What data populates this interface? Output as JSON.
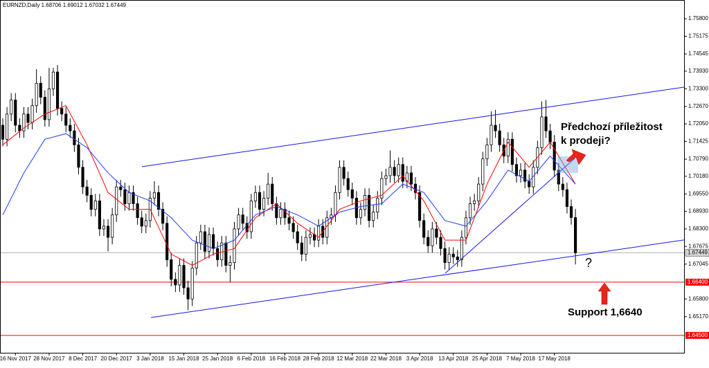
{
  "chart_data": {
    "type": "candlestick",
    "title": "EURNZD,Daily",
    "xlim": [
      -0.66,
      161.8
    ],
    "ylim": [
      1.6388,
      1.7647
    ],
    "xticks": [
      {
        "value": 3,
        "label": "16 Nov 2017"
      },
      {
        "value": 11,
        "label": "28 Nov 2017"
      },
      {
        "value": 19,
        "label": "8 Dec 2017"
      },
      {
        "value": 27,
        "label": "20 Dec 2017"
      },
      {
        "value": 35,
        "label": "3 Jan 2018"
      },
      {
        "value": 43,
        "label": "15 Jan 2018"
      },
      {
        "value": 51,
        "label": "25 Jan 2018"
      },
      {
        "value": 59,
        "label": "6 Feb 2018"
      },
      {
        "value": 67,
        "label": "16 Feb 2018"
      },
      {
        "value": 75,
        "label": "28 Feb 2018"
      },
      {
        "value": 83,
        "label": "12 Mar 2018"
      },
      {
        "value": 91,
        "label": "22 Mar 2018"
      },
      {
        "value": 99,
        "label": "3 Apr 2018"
      },
      {
        "value": 107,
        "label": "13 Apr 2018"
      },
      {
        "value": 115,
        "label": "25 Apr 2018"
      },
      {
        "value": 123,
        "label": "7 May 2018"
      },
      {
        "value": 131,
        "label": "17 May 2018"
      }
    ],
    "yticks": [
      {
        "value": 1.758,
        "label": "1.75800"
      },
      {
        "value": 1.75175,
        "label": "1.75175"
      },
      {
        "value": 1.74545,
        "label": "1.74545"
      },
      {
        "value": 1.7393,
        "label": "1.73930"
      },
      {
        "value": 1.733,
        "label": "1.73300"
      },
      {
        "value": 1.7267,
        "label": "1.72670"
      },
      {
        "value": 1.7205,
        "label": "1.72050"
      },
      {
        "value": 1.71425,
        "label": "1.71425"
      },
      {
        "value": 1.7079,
        "label": "1.70790"
      },
      {
        "value": 1.7018,
        "label": "1.70180"
      },
      {
        "value": 1.6955,
        "label": "1.69550"
      },
      {
        "value": 1.6893,
        "label": "1.68930"
      },
      {
        "value": 1.683,
        "label": "1.68300"
      },
      {
        "value": 1.67675,
        "label": "1.67675"
      },
      {
        "value": 1.67045,
        "label": "1.67045"
      },
      {
        "value": 1.658,
        "label": "1.65800"
      },
      {
        "value": 1.6517,
        "label": "1.65170"
      }
    ],
    "levels": [
      {
        "value": 1.664,
        "label": "1.66400",
        "color": "#ff0000"
      },
      {
        "value": 1.645,
        "label": "1.64500",
        "color": "#ff0000"
      }
    ],
    "up_color": "#ffffff",
    "down_color": "#000000",
    "ohlc": [
      [
        1.72,
        1.7225,
        1.7125,
        1.715
      ],
      [
        1.715,
        1.7265,
        1.7125,
        1.724
      ],
      [
        1.724,
        1.7315,
        1.7215,
        1.729
      ],
      [
        1.729,
        1.7315,
        1.7175,
        1.72
      ],
      [
        1.72,
        1.7225,
        1.7155,
        1.718
      ],
      [
        1.718,
        1.7265,
        1.7155,
        1.724
      ],
      [
        1.724,
        1.7265,
        1.7185,
        1.721
      ],
      [
        1.721,
        1.7295,
        1.7185,
        1.727
      ],
      [
        1.727,
        1.74,
        1.7245,
        1.735
      ],
      [
        1.735,
        1.7375,
        1.7275,
        1.73
      ],
      [
        1.73,
        1.7325,
        1.7195,
        1.722
      ],
      [
        1.722,
        1.7405,
        1.7195,
        1.733
      ],
      [
        1.733,
        1.7405,
        1.7305,
        1.739
      ],
      [
        1.739,
        1.7415,
        1.7235,
        1.726
      ],
      [
        1.726,
        1.7285,
        1.7215,
        1.724
      ],
      [
        1.724,
        1.7265,
        1.7175,
        1.72
      ],
      [
        1.72,
        1.7225,
        1.7155,
        1.718
      ],
      [
        1.718,
        1.7205,
        1.7105,
        1.713
      ],
      [
        1.713,
        1.7155,
        1.7025,
        1.705
      ],
      [
        1.705,
        1.7075,
        1.6955,
        1.698
      ],
      [
        1.698,
        1.7005,
        1.6925,
        1.695
      ],
      [
        1.695,
        1.6975,
        1.6875,
        1.69
      ],
      [
        1.69,
        1.6955,
        1.6875,
        1.693
      ],
      [
        1.693,
        1.6955,
        1.6805,
        1.683
      ],
      [
        1.683,
        1.6865,
        1.6805,
        1.684
      ],
      [
        1.684,
        1.6865,
        1.675,
        1.68
      ],
      [
        1.68,
        1.6905,
        1.6775,
        1.688
      ],
      [
        1.688,
        1.7005,
        1.6855,
        1.698
      ],
      [
        1.698,
        1.7005,
        1.6945,
        1.697
      ],
      [
        1.697,
        1.6995,
        1.6895,
        1.692
      ],
      [
        1.692,
        1.6985,
        1.6895,
        1.696
      ],
      [
        1.696,
        1.6985,
        1.6895,
        1.692
      ],
      [
        1.692,
        1.6945,
        1.6845,
        1.687
      ],
      [
        1.687,
        1.6895,
        1.6815,
        1.684
      ],
      [
        1.684,
        1.6885,
        1.6815,
        1.686
      ],
      [
        1.686,
        1.6965,
        1.6835,
        1.694
      ],
      [
        1.694,
        1.7,
        1.6915,
        1.696
      ],
      [
        1.696,
        1.6985,
        1.6875,
        1.69
      ],
      [
        1.69,
        1.6925,
        1.6825,
        1.685
      ],
      [
        1.685,
        1.6875,
        1.6695,
        1.672
      ],
      [
        1.672,
        1.6745,
        1.6625,
        1.665
      ],
      [
        1.665,
        1.6675,
        1.6605,
        1.663
      ],
      [
        1.663,
        1.6725,
        1.6605,
        1.67
      ],
      [
        1.67,
        1.6725,
        1.6595,
        1.662
      ],
      [
        1.662,
        1.6645,
        1.654,
        1.658
      ],
      [
        1.658,
        1.6715,
        1.6555,
        1.669
      ],
      [
        1.669,
        1.6805,
        1.6665,
        1.678
      ],
      [
        1.678,
        1.6845,
        1.6755,
        1.682
      ],
      [
        1.682,
        1.6845,
        1.6725,
        1.675
      ],
      [
        1.675,
        1.6835,
        1.6725,
        1.681
      ],
      [
        1.681,
        1.6835,
        1.6735,
        1.676
      ],
      [
        1.676,
        1.6785,
        1.6695,
        1.672
      ],
      [
        1.672,
        1.6805,
        1.6695,
        1.678
      ],
      [
        1.678,
        1.6805,
        1.6675,
        1.67
      ],
      [
        1.67,
        1.6735,
        1.664,
        1.671
      ],
      [
        1.671,
        1.6855,
        1.6685,
        1.683
      ],
      [
        1.683,
        1.6905,
        1.6805,
        1.688
      ],
      [
        1.688,
        1.6905,
        1.6825,
        1.685
      ],
      [
        1.685,
        1.6875,
        1.6795,
        1.682
      ],
      [
        1.682,
        1.6955,
        1.6795,
        1.693
      ],
      [
        1.693,
        1.6985,
        1.6905,
        1.696
      ],
      [
        1.696,
        1.6985,
        1.6875,
        1.69
      ],
      [
        1.69,
        1.6965,
        1.6875,
        1.694
      ],
      [
        1.694,
        1.703,
        1.6915,
        1.699
      ],
      [
        1.699,
        1.7015,
        1.6895,
        1.692
      ],
      [
        1.692,
        1.6945,
        1.6845,
        1.687
      ],
      [
        1.687,
        1.6925,
        1.6845,
        1.69
      ],
      [
        1.69,
        1.6925,
        1.6845,
        1.687
      ],
      [
        1.687,
        1.6895,
        1.6825,
        1.685
      ],
      [
        1.685,
        1.6875,
        1.6795,
        1.682
      ],
      [
        1.682,
        1.6845,
        1.6755,
        1.678
      ],
      [
        1.678,
        1.6805,
        1.6715,
        1.674
      ],
      [
        1.674,
        1.6825,
        1.6715,
        1.68
      ],
      [
        1.68,
        1.6835,
        1.6775,
        1.681
      ],
      [
        1.681,
        1.6835,
        1.6765,
        1.679
      ],
      [
        1.679,
        1.6865,
        1.6765,
        1.684
      ],
      [
        1.684,
        1.6865,
        1.6775,
        1.68
      ],
      [
        1.68,
        1.6895,
        1.6775,
        1.687
      ],
      [
        1.687,
        1.6905,
        1.6845,
        1.688
      ],
      [
        1.688,
        1.6985,
        1.6855,
        1.696
      ],
      [
        1.696,
        1.7075,
        1.6935,
        1.705
      ],
      [
        1.705,
        1.7075,
        1.6985,
        1.701
      ],
      [
        1.701,
        1.7035,
        1.6945,
        1.697
      ],
      [
        1.697,
        1.6995,
        1.6915,
        1.694
      ],
      [
        1.694,
        1.6965,
        1.6845,
        1.687
      ],
      [
        1.687,
        1.6925,
        1.6845,
        1.69
      ],
      [
        1.69,
        1.6975,
        1.6875,
        1.695
      ],
      [
        1.695,
        1.6975,
        1.6835,
        1.686
      ],
      [
        1.686,
        1.6915,
        1.6835,
        1.689
      ],
      [
        1.689,
        1.6965,
        1.6865,
        1.694
      ],
      [
        1.694,
        1.7035,
        1.6915,
        1.701
      ],
      [
        1.701,
        1.7045,
        1.6985,
        1.702
      ],
      [
        1.702,
        1.711,
        1.6995,
        1.705
      ],
      [
        1.705,
        1.7075,
        1.6995,
        1.702
      ],
      [
        1.702,
        1.7085,
        1.6995,
        1.706
      ],
      [
        1.706,
        1.7085,
        1.6975,
        1.7
      ],
      [
        1.7,
        1.7055,
        1.6975,
        1.703
      ],
      [
        1.703,
        1.7055,
        1.6965,
        1.699
      ],
      [
        1.699,
        1.7015,
        1.6935,
        1.696
      ],
      [
        1.696,
        1.6985,
        1.6835,
        1.686
      ],
      [
        1.686,
        1.6885,
        1.6775,
        1.68
      ],
      [
        1.68,
        1.6825,
        1.6745,
        1.677
      ],
      [
        1.677,
        1.6855,
        1.6745,
        1.683
      ],
      [
        1.683,
        1.6855,
        1.6775,
        1.68
      ],
      [
        1.68,
        1.6825,
        1.6735,
        1.676
      ],
      [
        1.676,
        1.6785,
        1.6685,
        1.671
      ],
      [
        1.671,
        1.6765,
        1.6685,
        1.674
      ],
      [
        1.674,
        1.6765,
        1.6705,
        1.673
      ],
      [
        1.673,
        1.6755,
        1.6695,
        1.672
      ],
      [
        1.672,
        1.6825,
        1.6695,
        1.68
      ],
      [
        1.68,
        1.6895,
        1.6775,
        1.687
      ],
      [
        1.687,
        1.6945,
        1.6845,
        1.692
      ],
      [
        1.692,
        1.6955,
        1.6895,
        1.693
      ],
      [
        1.693,
        1.7015,
        1.6905,
        1.699
      ],
      [
        1.699,
        1.7105,
        1.6965,
        1.708
      ],
      [
        1.708,
        1.7155,
        1.7055,
        1.713
      ],
      [
        1.713,
        1.725,
        1.7105,
        1.72
      ],
      [
        1.72,
        1.7255,
        1.7155,
        1.718
      ],
      [
        1.718,
        1.7205,
        1.7105,
        1.713
      ],
      [
        1.713,
        1.7155,
        1.7065,
        1.709
      ],
      [
        1.709,
        1.7175,
        1.7065,
        1.715
      ],
      [
        1.715,
        1.7175,
        1.7035,
        1.706
      ],
      [
        1.706,
        1.7085,
        1.6995,
        1.702
      ],
      [
        1.702,
        1.7065,
        1.6995,
        1.704
      ],
      [
        1.704,
        1.7065,
        1.6975,
        1.7
      ],
      [
        1.7,
        1.7025,
        1.6955,
        1.698
      ],
      [
        1.698,
        1.7075,
        1.6955,
        1.705
      ],
      [
        1.705,
        1.7145,
        1.7025,
        1.712
      ],
      [
        1.712,
        1.7285,
        1.7095,
        1.723
      ],
      [
        1.723,
        1.729,
        1.7155,
        1.718
      ],
      [
        1.718,
        1.7205,
        1.7115,
        1.714
      ],
      [
        1.714,
        1.7165,
        1.7015,
        1.704
      ],
      [
        1.704,
        1.7065,
        1.6965,
        1.699
      ],
      [
        1.699,
        1.7015,
        1.6945,
        1.697
      ],
      [
        1.697,
        1.6995,
        1.6885,
        1.691
      ],
      [
        1.691,
        1.6935,
        1.6845,
        1.68706
      ],
      [
        1.68706,
        1.69012,
        1.67032,
        1.67449
      ]
    ],
    "series": [
      {
        "color": "#ff0000",
        "x": [
          0,
          5,
          10,
          15,
          20,
          25,
          30,
          35,
          40,
          45,
          50,
          55,
          60,
          65,
          70,
          75,
          80,
          85,
          90,
          95,
          100,
          105,
          110,
          115,
          120,
          125,
          130,
          136
        ],
        "values": [
          1.713,
          1.719,
          1.724,
          1.727,
          1.713,
          1.696,
          1.69,
          1.69,
          1.674,
          1.67,
          1.674,
          1.676,
          1.687,
          1.692,
          1.685,
          1.68,
          1.69,
          1.693,
          1.695,
          1.702,
          1.693,
          1.679,
          1.679,
          1.699,
          1.714,
          1.705,
          1.714,
          1.699
        ]
      },
      {
        "color": "#1e3cff",
        "x": [
          0,
          5,
          10,
          15,
          20,
          25,
          30,
          35,
          40,
          45,
          50,
          55,
          60,
          65,
          70,
          75,
          80,
          85,
          90,
          95,
          100,
          105,
          110,
          115,
          120,
          125,
          130,
          136
        ],
        "values": [
          1.688,
          1.703,
          1.715,
          1.717,
          1.712,
          1.703,
          1.696,
          1.693,
          1.687,
          1.679,
          1.676,
          1.679,
          1.688,
          1.691,
          1.688,
          1.684,
          1.689,
          1.691,
          1.692,
          1.699,
          1.696,
          1.686,
          1.684,
          1.693,
          1.704,
          1.7,
          1.709,
          1.699
        ]
      }
    ],
    "annotations": {
      "sell_note": [
        "Předchozí příležitost",
        "k prodeji?"
      ],
      "question": "?",
      "support": "Support 1,6640"
    }
  }
}
